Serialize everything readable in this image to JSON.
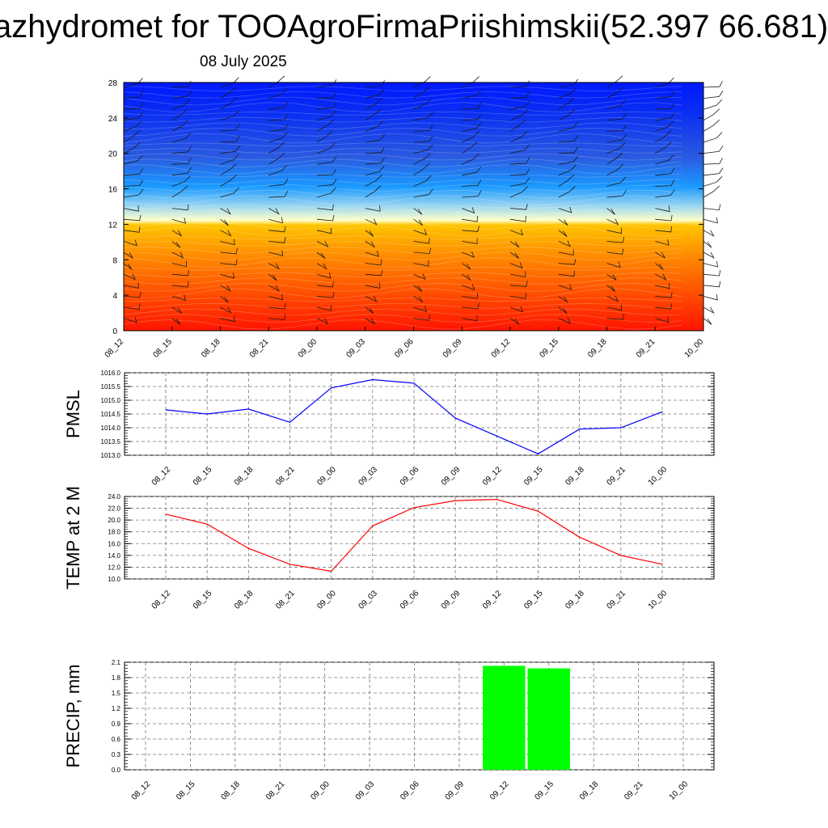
{
  "header": {
    "title": "azhydromet for TOOAgroFirmaPriishimskii(52.397 66.681)",
    "subtitle": "08 July 2025"
  },
  "chart_data": [
    {
      "type": "heatmap",
      "description": "Vertical cross-section contour fill with wind barbs",
      "x_tick_labels": [
        "08_12",
        "08_15",
        "08_18",
        "08_21",
        "09_00",
        "09_03",
        "09_06",
        "09_09",
        "09_12",
        "09_15",
        "09_18",
        "09_21",
        "10_00"
      ],
      "y_ticks": [
        0,
        4,
        8,
        12,
        16,
        20,
        24,
        28
      ],
      "ylim": [
        0,
        28
      ],
      "color_top": "#0020ff",
      "color_bottom": "#ff1a00",
      "grid": false
    },
    {
      "type": "line",
      "ylabel": "PMSL",
      "categories": [
        "08_12",
        "08_15",
        "08_18",
        "08_21",
        "09_00",
        "09_03",
        "09_06",
        "09_09",
        "09_12",
        "09_15",
        "09_18",
        "09_21",
        "10_00"
      ],
      "values": [
        1014.65,
        1014.5,
        1014.68,
        1014.2,
        1015.45,
        1015.75,
        1015.62,
        1014.35,
        1013.7,
        1013.05,
        1013.95,
        1014.0,
        1014.58
      ],
      "ylim": [
        1013.0,
        1016.0
      ],
      "y_ticks": [
        "1013.0",
        "1013.5",
        "1014.0",
        "1014.5",
        "1015.0",
        "1015.5",
        "1016.0"
      ],
      "color": "#0000ff",
      "grid": true
    },
    {
      "type": "line",
      "ylabel": "TEMP at 2 M",
      "categories": [
        "08_12",
        "08_15",
        "08_18",
        "08_21",
        "09_00",
        "09_03",
        "09_06",
        "09_09",
        "09_12",
        "09_15",
        "09_18",
        "09_21",
        "10_00"
      ],
      "values": [
        21.0,
        19.3,
        15.2,
        12.5,
        11.3,
        19.0,
        22.1,
        23.3,
        23.5,
        21.5,
        17.1,
        14.0,
        12.5
      ],
      "ylim": [
        10.0,
        24.0
      ],
      "y_ticks": [
        "10.0",
        "12.0",
        "14.0",
        "16.0",
        "18.0",
        "20.0",
        "22.0",
        "24.0"
      ],
      "color": "#ff0000",
      "grid": true
    },
    {
      "type": "bar",
      "ylabel": "PRECIP, mm",
      "categories": [
        "08_12",
        "08_15",
        "08_18",
        "08_21",
        "09_00",
        "09_03",
        "09_06",
        "09_09",
        "09_12",
        "09_15",
        "09_18",
        "09_21",
        "10_00"
      ],
      "values": [
        0,
        0,
        0,
        0,
        0,
        0,
        0,
        0,
        2.03,
        1.98,
        0,
        0,
        0
      ],
      "ylim": [
        0.0,
        2.1
      ],
      "y_ticks": [
        "0.0",
        "0.3",
        "0.6",
        "0.9",
        "1.2",
        "1.5",
        "1.8",
        "2.1"
      ],
      "color": "#00ff00",
      "grid": true
    }
  ]
}
